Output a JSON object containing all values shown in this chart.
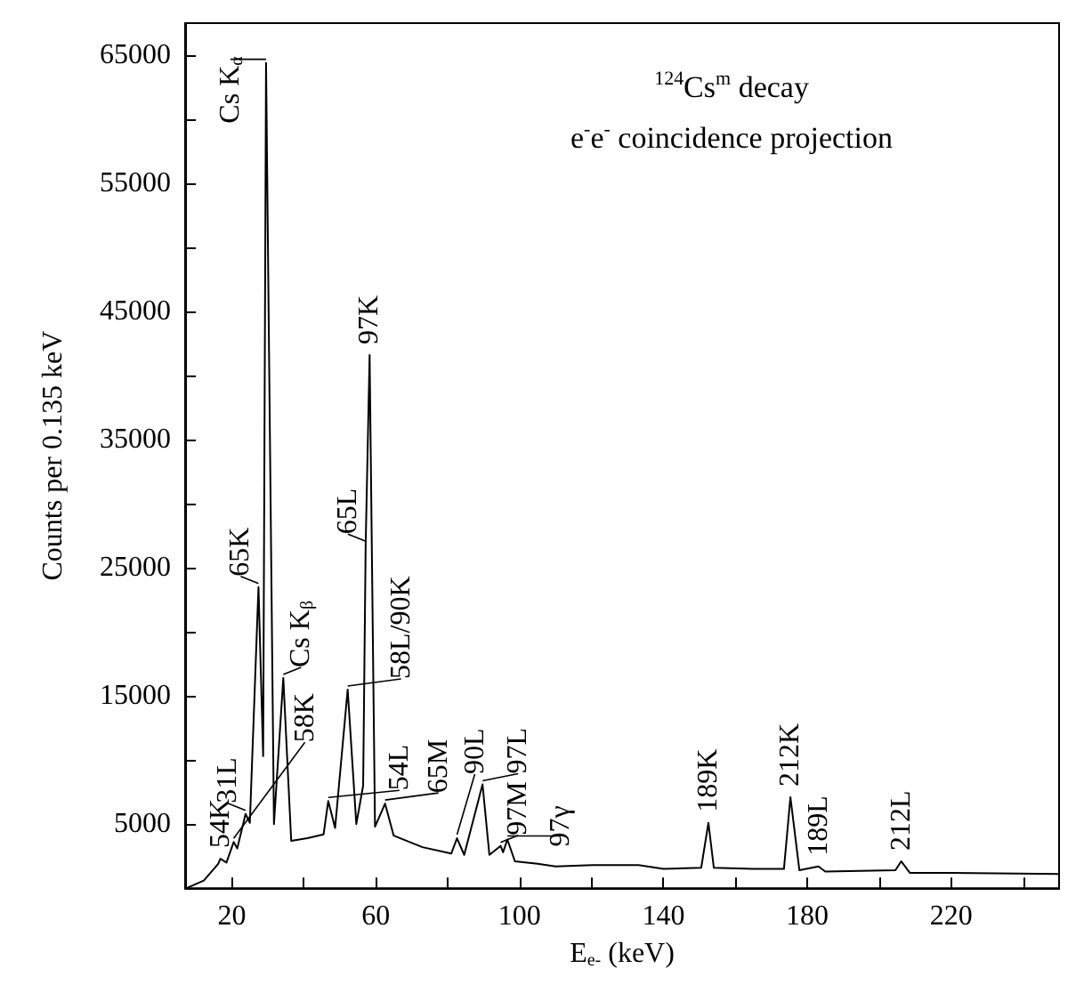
{
  "chart_data": {
    "type": "line",
    "title": "$^{124}$Cs$^{m}$ decay",
    "subtitle": "e$^{-}$e$^{-}$ coincidence projection",
    "xlabel": "E$_{e-}$ (keV)",
    "ylabel": "Counts per 0.135 keV",
    "xlim": [
      7,
      250
    ],
    "xticks": [
      20,
      {
        "value": 40,
        "label": null
      },
      60,
      {
        "value": 80,
        "label": null
      },
      100,
      {
        "value": 120,
        "label": null
      },
      140,
      {
        "value": 160,
        "label": null
      },
      180,
      {
        "value": 200,
        "label": null
      },
      220,
      {
        "value": 240,
        "label": null
      }
    ],
    "ylim": [
      0,
      67500
    ],
    "yticks": [
      5000,
      {
        "value": 10000,
        "label": null
      },
      15000,
      {
        "value": 20000,
        "label": null
      },
      25000,
      {
        "value": 30000,
        "label": null
      },
      35000,
      {
        "value": 40000,
        "label": null
      },
      45000,
      {
        "value": 50000,
        "label": null
      },
      55000,
      {
        "value": 60000,
        "label": null
      },
      65000
    ],
    "series": [
      {
        "color": "#000000",
        "x": [
          7.4,
          12.2,
          16.2,
          16.8,
          18.5,
          20.5,
          21.5,
          23.8,
          25,
          27.4,
          28.7,
          29.5,
          31.7,
          34.3,
          36.5,
          41,
          45.5,
          46.8,
          48.7,
          52.2,
          54.6,
          56.5,
          57.2,
          58.3,
          59.8,
          62.6,
          65,
          73,
          81,
          82.6,
          84.6,
          89.7,
          91.6,
          94.7,
          95.4,
          96.6,
          98.7,
          105,
          110,
          120.3,
          125,
          133.1,
          140,
          150.5,
          152.5,
          154,
          165,
          173.5,
          175.3,
          177.8,
          183.1,
          185,
          204.5,
          206.1,
          208.5,
          220,
          250
        ],
        "values": [
          0,
          600,
          1900,
          2300,
          2000,
          3600,
          3100,
          5800,
          5100,
          23500,
          10300,
          64400,
          5000,
          16400,
          3700,
          3900,
          4200,
          6800,
          4700,
          15500,
          5000,
          8000,
          26800,
          41600,
          4800,
          6600,
          4100,
          3200,
          2700,
          3900,
          2600,
          8100,
          2600,
          3300,
          2800,
          3800,
          2100,
          1900,
          1700,
          1800,
          1800,
          1800,
          1500,
          1600,
          5100,
          1600,
          1500,
          1500,
          7100,
          1400,
          1700,
          1300,
          1400,
          2100,
          1200,
          1200,
          1100
        ]
      }
    ],
    "annotations": [
      {
        "text": "Cs K$_{α}$",
        "x": 29.5,
        "y": 64400
      },
      {
        "text": "97K",
        "x": 58.3,
        "y": 41600
      },
      {
        "text": "65L",
        "x": 57.2,
        "y": 26800
      },
      {
        "text": "65K",
        "x": 27.4,
        "y": 23500
      },
      {
        "text": "Cs K$_{β}$",
        "x": 34.3,
        "y": 16400
      },
      {
        "text": "58L/90K",
        "x": 52.2,
        "y": 15500
      },
      {
        "text": "31L",
        "x": 23.8,
        "y": 5800
      },
      {
        "text": "58K",
        "x": 20.5,
        "y": 3600
      },
      {
        "text": "54K",
        "x": 16.8,
        "y": 2300
      },
      {
        "text": "54L",
        "x": 46.8,
        "y": 6800
      },
      {
        "text": "65M",
        "x": 62.6,
        "y": 6600
      },
      {
        "text": "90L",
        "x": 82.6,
        "y": 3900
      },
      {
        "text": "97L",
        "x": 89.7,
        "y": 8100
      },
      {
        "text": "97M",
        "x": 94.7,
        "y": 3300
      },
      {
        "text": "97γ",
        "x": 96.6,
        "y": 3800
      },
      {
        "text": "189K",
        "x": 152.5,
        "y": 5100
      },
      {
        "text": "212K",
        "x": 175.3,
        "y": 7100
      },
      {
        "text": "189L",
        "x": 183.1,
        "y": 1700
      },
      {
        "text": "212L",
        "x": 206.1,
        "y": 2100
      }
    ]
  }
}
